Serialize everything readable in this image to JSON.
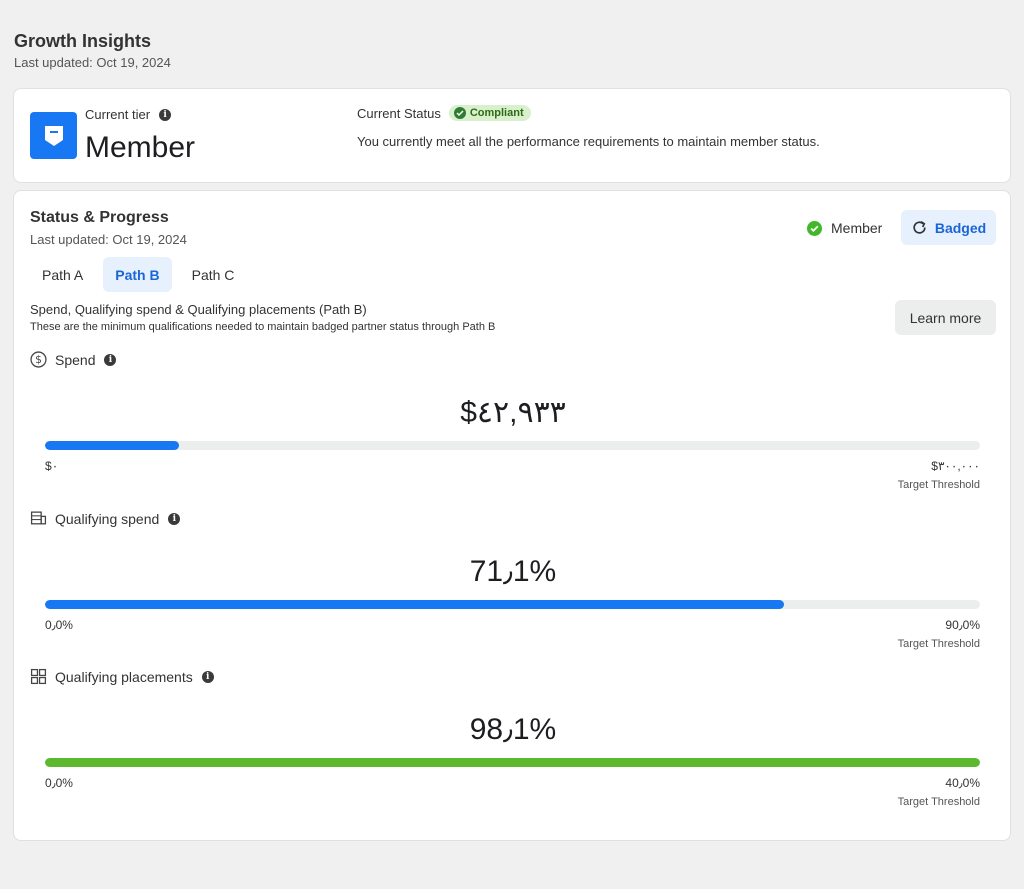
{
  "header": {
    "title": "Growth Insights",
    "updated": "Last updated: Oct 19, 2024"
  },
  "tier": {
    "label": "Current tier",
    "value": "Member",
    "status_label": "Current Status",
    "status_badge": "Compliant",
    "status_description": "You currently meet all the performance requirements to maintain member status."
  },
  "progress": {
    "title": "Status & Progress",
    "updated": "Last updated: Oct 19, 2024",
    "member_label": "Member",
    "badged_label": "Badged",
    "tabs": [
      {
        "label": "Path A",
        "active": false
      },
      {
        "label": "Path B",
        "active": true
      },
      {
        "label": "Path C",
        "active": false
      }
    ],
    "requirement_title": "Spend, Qualifying spend & Qualifying placements (Path B)",
    "requirement_subtitle": "These are the minimum qualifications needed to maintain badged partner status through Path B",
    "learn_more_label": "Learn more",
    "metrics": [
      {
        "label": "Spend",
        "icon": "dollar-circle-icon",
        "value": "$٤٢,٩٣٣",
        "progress_fraction": 0.143,
        "bar_color": "#1877f2",
        "min": "$٠",
        "max": "$٣٠٠,٠٠٠",
        "threshold_label": "Target Threshold"
      },
      {
        "label": "Qualifying spend",
        "icon": "stacked-coins-icon",
        "value": "71٫1%",
        "progress_fraction": 0.79,
        "bar_color": "#1877f2",
        "min": "0٫0%",
        "max": "90٫0%",
        "threshold_label": "Target Threshold"
      },
      {
        "label": "Qualifying placements",
        "icon": "grid-placements-icon",
        "value": "98٫1%",
        "progress_fraction": 1.0,
        "bar_color": "#5cb82c",
        "min": "0٫0%",
        "max": "40٫0%",
        "threshold_label": "Target Threshold"
      }
    ]
  },
  "colors": {
    "accent": "#1877f2",
    "success": "#42b72a",
    "background": "#f0f0f0"
  }
}
